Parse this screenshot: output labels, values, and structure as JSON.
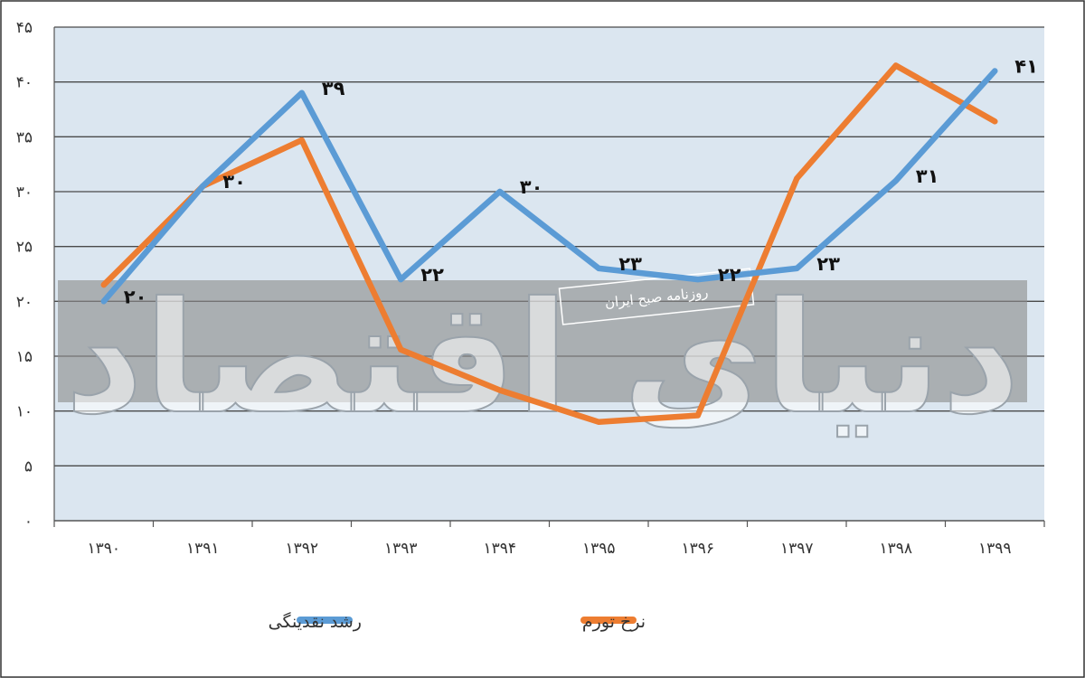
{
  "chart_data": {
    "type": "line",
    "categories": [
      "۱۳۹۰",
      "۱۳۹۱",
      "۱۳۹۲",
      "۱۳۹۳",
      "۱۳۹۴",
      "۱۳۹۵",
      "۱۳۹۶",
      "۱۳۹۷",
      "۱۳۹۸",
      "۱۳۹۹"
    ],
    "y_ticks": [
      "۰",
      "۵",
      "۱۰",
      "۱۵",
      "۲۰",
      "۲۵",
      "۳۰",
      "۳۵",
      "۴۰",
      "۴۵"
    ],
    "ylim": [
      0,
      45
    ],
    "grid": true,
    "legend_position": "bottom",
    "series": [
      {
        "name": "رشد نقدینگی",
        "color": "#5b9bd5",
        "values": [
          20,
          30.5,
          39,
          22,
          30,
          23,
          22,
          23,
          31,
          41
        ],
        "labels": [
          "۲۰",
          "۳۰",
          "۳۹",
          "۲۲",
          "۳۰",
          "۲۳",
          "۲۲",
          "۲۳",
          "۳۱",
          "۴۱"
        ]
      },
      {
        "name": "نرخ تورم",
        "color": "#ed7d31",
        "values": [
          21.5,
          30.5,
          34.7,
          15.6,
          11.9,
          9,
          9.6,
          31.2,
          41.5,
          36.4
        ]
      }
    ],
    "plot_background": "#dbe6f0"
  },
  "watermark": {
    "brand": "دنیای اقتصاد",
    "tagline": "روزنامه صبح ایران"
  }
}
